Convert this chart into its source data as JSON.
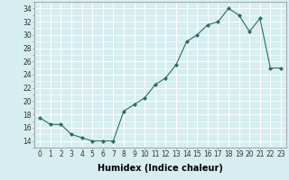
{
  "x": [
    0,
    1,
    2,
    3,
    4,
    5,
    6,
    7,
    8,
    9,
    10,
    11,
    12,
    13,
    14,
    15,
    16,
    17,
    18,
    19,
    20,
    21,
    22,
    23
  ],
  "y": [
    17.5,
    16.5,
    16.5,
    15.0,
    14.5,
    14.0,
    14.0,
    14.0,
    18.5,
    19.5,
    20.5,
    22.5,
    23.5,
    25.5,
    29.0,
    30.0,
    31.5,
    32.0,
    34.0,
    33.0,
    30.5,
    32.5,
    25.0,
    25.0
  ],
  "xlabel": "Humidex (Indice chaleur)",
  "xlim": [
    -0.5,
    23.5
  ],
  "ylim": [
    13,
    35
  ],
  "yticks": [
    14,
    16,
    18,
    20,
    22,
    24,
    26,
    28,
    30,
    32,
    34
  ],
  "xticks": [
    0,
    1,
    2,
    3,
    4,
    5,
    6,
    7,
    8,
    9,
    10,
    11,
    12,
    13,
    14,
    15,
    16,
    17,
    18,
    19,
    20,
    21,
    22,
    23
  ],
  "line_color": "#2e6b5e",
  "marker": "D",
  "marker_size": 2,
  "bg_color": "#d6eef0",
  "grid_color": "#ffffff",
  "fig_bg": "#d6eef0",
  "tick_fontsize": 5.5,
  "xlabel_fontsize": 7
}
